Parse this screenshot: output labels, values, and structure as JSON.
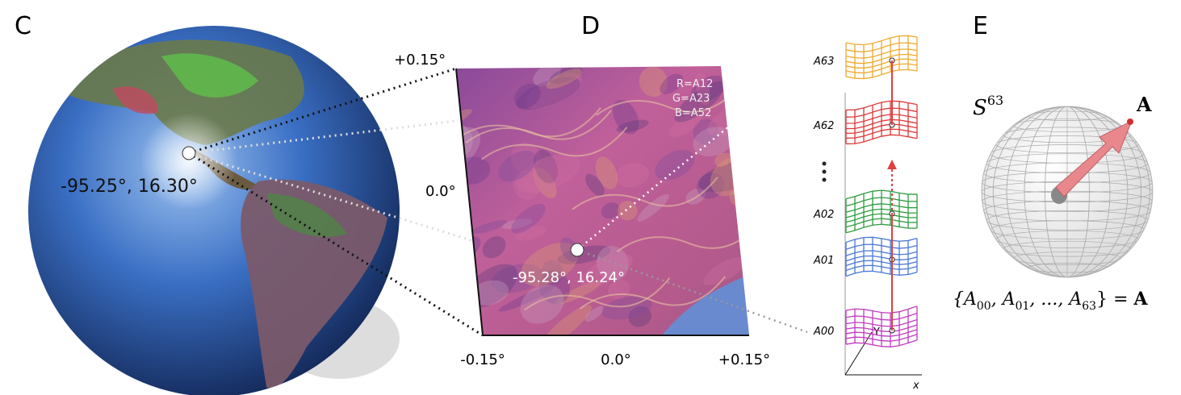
{
  "panels": [
    {
      "label": "C",
      "point_label": "-95.25°, 16.30°"
    },
    {
      "label": "D",
      "y_ticks": [
        "+0.15°",
        "0.0°"
      ],
      "x_ticks": [
        "-0.15°",
        "0.0°",
        "+0.15°"
      ],
      "channels": [
        "R=A12",
        "G=A23",
        "B=A52"
      ],
      "point_label": "-95.28°, 16.24°",
      "layers": [
        {
          "label": "A63",
          "color": "#eeaa2e"
        },
        {
          "label": "A62",
          "color": "#dd3838"
        },
        {
          "label": "A02",
          "color": "#2e9c3e"
        },
        {
          "label": "A01",
          "color": "#4a78d6"
        },
        {
          "label": "A00",
          "color": "#c03cc0"
        }
      ],
      "axis_y": "Y",
      "axis_x": "x"
    },
    {
      "label": "E",
      "sphere_base": "S",
      "sphere_sup": "63",
      "vector_label": "A",
      "formula": [
        "{A",
        "00",
        ", A",
        "01",
        ", ..., A",
        "63",
        "} = ",
        "A"
      ]
    }
  ]
}
